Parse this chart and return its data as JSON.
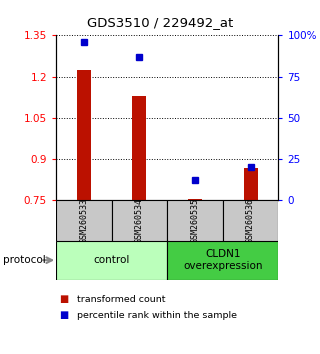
{
  "title": "GDS3510 / 229492_at",
  "samples": [
    "GSM260533",
    "GSM260534",
    "GSM260535",
    "GSM260536"
  ],
  "bar_values": [
    1.225,
    1.13,
    0.755,
    0.865
  ],
  "percentile_values": [
    96,
    87,
    12,
    20
  ],
  "ylim_left": [
    0.75,
    1.35
  ],
  "ylim_right": [
    0,
    100
  ],
  "yticks_left": [
    0.75,
    0.9,
    1.05,
    1.2,
    1.35
  ],
  "ytick_labels_left": [
    "0.75",
    "0.9",
    "1.05",
    "1.2",
    "1.35"
  ],
  "yticks_right": [
    0,
    25,
    50,
    75,
    100
  ],
  "ytick_labels_right": [
    "0",
    "25",
    "50",
    "75",
    "100%"
  ],
  "bar_color": "#bb1100",
  "dot_color": "#0000cc",
  "bar_bottom": 0.75,
  "bar_width": 0.25,
  "groups": [
    {
      "label": "control",
      "samples": [
        0,
        1
      ],
      "color": "#bbffbb"
    },
    {
      "label": "CLDN1\noverexpression",
      "samples": [
        2,
        3
      ],
      "color": "#44cc44"
    }
  ],
  "protocol_label": "protocol",
  "legend_bar_label": "transformed count",
  "legend_dot_label": "percentile rank within the sample",
  "background_color": "#ffffff",
  "plot_bg_color": "#ffffff",
  "sample_cell_color": "#c8c8c8"
}
